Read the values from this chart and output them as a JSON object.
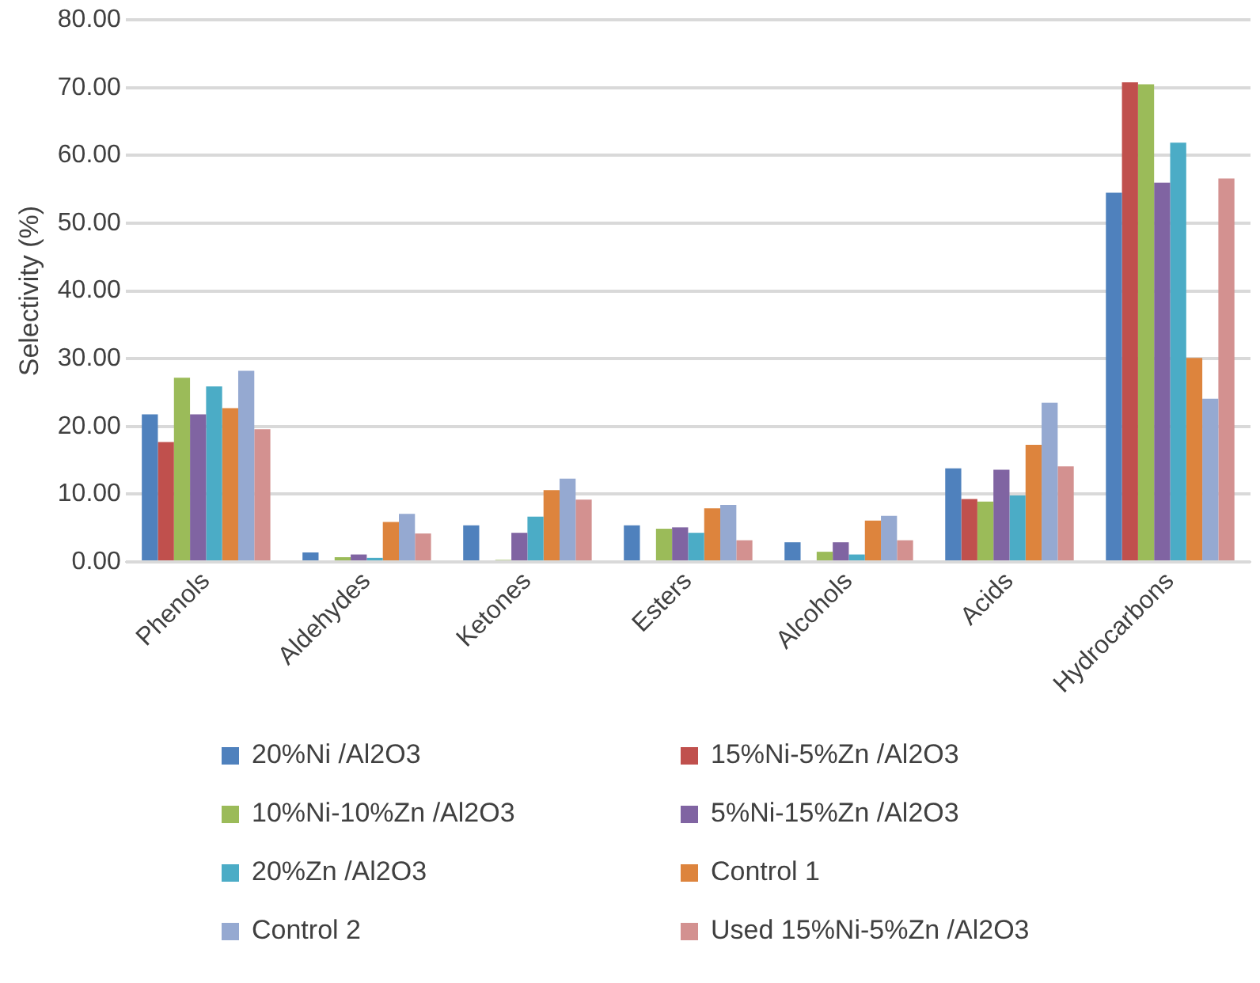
{
  "chart_data": {
    "type": "bar",
    "ylabel": "Selectivity (%)",
    "categories": [
      "Phenols",
      "Aldehydes",
      "Ketones",
      "Esters",
      "Alcohols",
      "Acids",
      "Hydrocarbons"
    ],
    "series": [
      {
        "name": "20%Ni /Al2O3",
        "color": "#4f81bd",
        "values": [
          21.8,
          1.4,
          5.4,
          5.4,
          2.9,
          13.8,
          54.5
        ]
      },
      {
        "name": "15%Ni-5%Zn /Al2O3",
        "color": "#c0504d",
        "values": [
          17.7,
          0,
          0,
          0,
          0,
          9.3,
          70.8
        ]
      },
      {
        "name": "10%Ni-10%Zn /Al2O3",
        "color": "#9bbb59",
        "values": [
          27.2,
          0.7,
          0.3,
          4.9,
          1.5,
          8.9,
          70.5
        ]
      },
      {
        "name": "5%Ni-15%Zn /Al2O3",
        "color": "#8064a2",
        "values": [
          21.8,
          1.1,
          4.3,
          5.1,
          2.9,
          13.6,
          56.0
        ]
      },
      {
        "name": "20%Zn /Al2O3",
        "color": "#4bacc6",
        "values": [
          25.9,
          0.6,
          6.7,
          4.3,
          1.1,
          9.8,
          61.9
        ]
      },
      {
        "name": "Control 1",
        "color": "#dd843d",
        "values": [
          22.7,
          5.9,
          10.6,
          7.9,
          6.1,
          17.3,
          30.1
        ]
      },
      {
        "name": "Control 2",
        "color": "#95a9d1",
        "values": [
          28.2,
          7.1,
          12.3,
          8.4,
          6.8,
          23.5,
          24.1
        ]
      },
      {
        "name": "Used 15%Ni-5%Zn /Al2O3",
        "color": "#d39190",
        "values": [
          19.6,
          4.2,
          9.2,
          3.2,
          3.2,
          14.1,
          56.6
        ]
      }
    ],
    "ylim": [
      0,
      80
    ],
    "yticks": [
      {
        "value": 0,
        "label": "0.00"
      },
      {
        "value": 10,
        "label": "10.00"
      },
      {
        "value": 20,
        "label": "20.00"
      },
      {
        "value": 30,
        "label": "30.00"
      },
      {
        "value": 40,
        "label": "40.00"
      },
      {
        "value": 50,
        "label": "50.00"
      },
      {
        "value": 60,
        "label": "60.00"
      },
      {
        "value": 70,
        "label": "70.00"
      },
      {
        "value": 80,
        "label": "80.00"
      }
    ],
    "grid": "y",
    "legend": "bottom"
  }
}
